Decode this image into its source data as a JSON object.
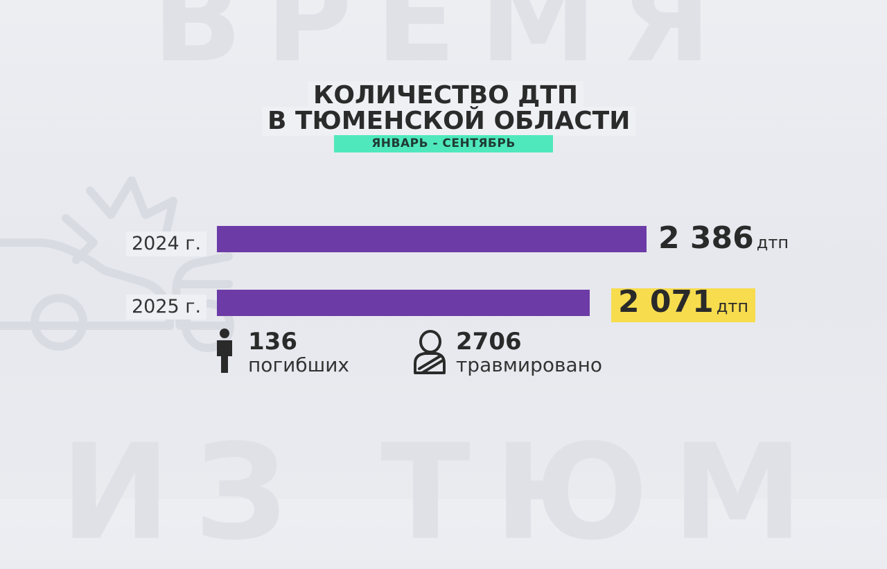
{
  "title_line1": "КОЛИЧЕСТВО ДТП",
  "title_line2": "В ТЮМЕНСКОЙ ОБЛАСТИ",
  "subtitle": "ЯНВАРЬ - СЕНТЯБРЬ",
  "colors": {
    "bar": "#6d3ba6",
    "highlight": "#f7dc4e",
    "subtitle_bg": "#4fe8bd"
  },
  "chart_data": {
    "type": "bar",
    "orientation": "horizontal",
    "title": "КОЛИЧЕСТВО ДТП В ТЮМЕНСКОЙ ОБЛАСТИ",
    "subtitle": "ЯНВАРЬ - СЕНТЯБРЬ",
    "categories": [
      "2024 г.",
      "2025 г."
    ],
    "values": [
      2386,
      2071
    ],
    "value_labels": [
      "2 386",
      "2 071"
    ],
    "unit": "дтп",
    "xlim": [
      0,
      2386
    ]
  },
  "stats": {
    "deaths": {
      "value": "136",
      "label": "погибших",
      "icon": "person-icon"
    },
    "injured": {
      "value": "2706",
      "label": "травмировано",
      "icon": "injured-person-icon"
    }
  }
}
